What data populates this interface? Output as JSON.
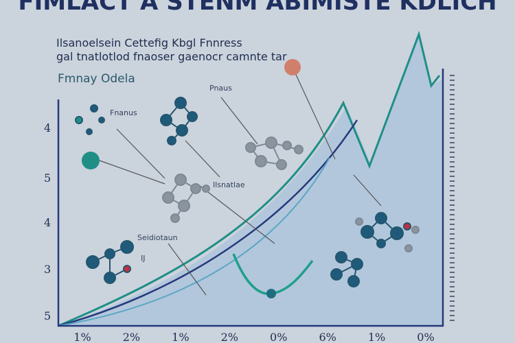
{
  "header": {
    "title": "FIMLACT A STENM ABIMISTE KDLICH",
    "subtitle_lines": [
      "Ilsanoelsein Cettefig Kbgl Fnnress",
      "gal tnatlotlod fnaoser gaenocr camnte tar"
    ],
    "section_label": "Fmnay Odela"
  },
  "annotations": [
    "Fnanus",
    "Pnaus",
    "Ilsnatlae",
    "Seidiotaun",
    "IJ"
  ],
  "left_axis_labels": [
    "4",
    "5",
    "4",
    "3",
    "5"
  ],
  "bottom_axis_labels": [
    "1%",
    "2%",
    "1%",
    "2%",
    "0%",
    "6%",
    "1%",
    "0%"
  ]
}
